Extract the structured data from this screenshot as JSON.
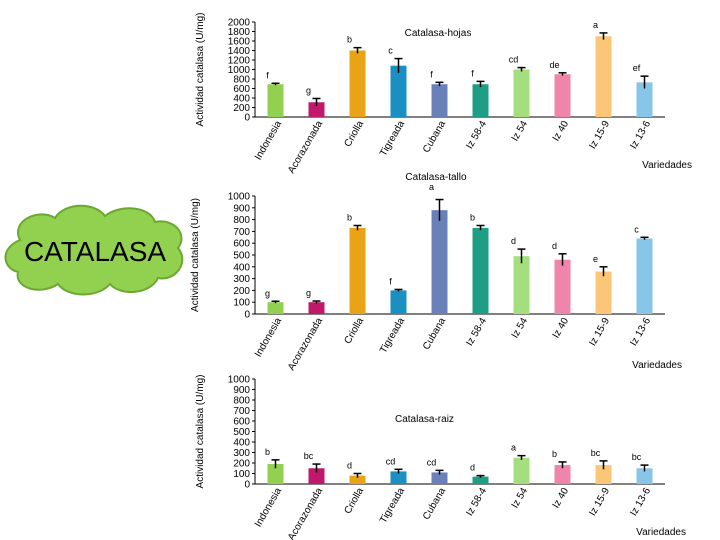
{
  "badge": {
    "text": "CATALASA",
    "fill": "#92d050",
    "stroke": "#6aa832"
  },
  "colors": [
    "#92d050",
    "#c0186a",
    "#e8a317",
    "#1a8fc2",
    "#6a80b8",
    "#1f9e86",
    "#a5de7e",
    "#ef85aa",
    "#fcc679",
    "#87c6e8"
  ],
  "chart_data": [
    {
      "type": "bar",
      "title": "Catalasa-hojas",
      "ylabel": "Actividad catalasa (U/mg)",
      "xlabel": "Variedades",
      "ylim": [
        0,
        2000
      ],
      "yticks": [
        0,
        200,
        400,
        600,
        800,
        1000,
        1200,
        1400,
        1600,
        1800,
        2000
      ],
      "categories": [
        "Indonesia",
        "Acorazonada",
        "Criolla",
        "Tigreada",
        "Cubana",
        "Iz 58-4",
        "Iz 54",
        "Iz 40",
        "Iz 15-9",
        "Iz 13-6"
      ],
      "values": [
        690,
        310,
        1400,
        1080,
        690,
        690,
        1000,
        900,
        1700,
        730
      ],
      "errors": [
        20,
        80,
        60,
        150,
        40,
        60,
        40,
        30,
        70,
        130
      ],
      "letters": [
        "f",
        "g",
        "b",
        "c",
        "f",
        "f",
        "cd",
        "de",
        "a",
        "ef"
      ]
    },
    {
      "type": "bar",
      "title": "Catalasa-tallo",
      "ylabel": "Actividad catalasa (U/mg)",
      "xlabel": "Variedades",
      "ylim": [
        0,
        1000
      ],
      "yticks": [
        0,
        100,
        200,
        300,
        400,
        500,
        600,
        700,
        800,
        900,
        1000
      ],
      "categories": [
        "Indonesia",
        "Acorazonada",
        "Criolla",
        "Tigreada",
        "Cubana",
        "Iz 58-4",
        "Iz 54",
        "Iz 40",
        "Iz 15-9",
        "Iz 13-6"
      ],
      "values": [
        100,
        100,
        730,
        200,
        880,
        730,
        490,
        460,
        360,
        640
      ],
      "errors": [
        8,
        10,
        20,
        8,
        90,
        20,
        60,
        50,
        40,
        10
      ],
      "letters": [
        "g",
        "g",
        "b",
        "f",
        "a",
        "b",
        "d",
        "d",
        "e",
        "c"
      ]
    },
    {
      "type": "bar",
      "title": "Catalasa-raiz",
      "ylabel": "Actividad catalasa (U/mg)",
      "xlabel": "Variedades",
      "ylim": [
        0,
        1000
      ],
      "yticks": [
        0,
        100,
        200,
        300,
        400,
        500,
        600,
        700,
        800,
        900,
        1000
      ],
      "categories": [
        "Indonesia",
        "Acorazonada",
        "Criolla",
        "Tigreada",
        "Cubana",
        "Iz 58-4",
        "Iz 54",
        "Iz 40",
        "Iz 15-9",
        "Iz 13-6"
      ],
      "values": [
        190,
        150,
        80,
        120,
        110,
        70,
        250,
        180,
        180,
        150
      ],
      "errors": [
        40,
        40,
        20,
        20,
        20,
        10,
        20,
        30,
        40,
        30
      ],
      "letters": [
        "b",
        "bc",
        "d",
        "cd",
        "cd",
        "d",
        "a",
        "b",
        "bc",
        "bc"
      ]
    }
  ]
}
